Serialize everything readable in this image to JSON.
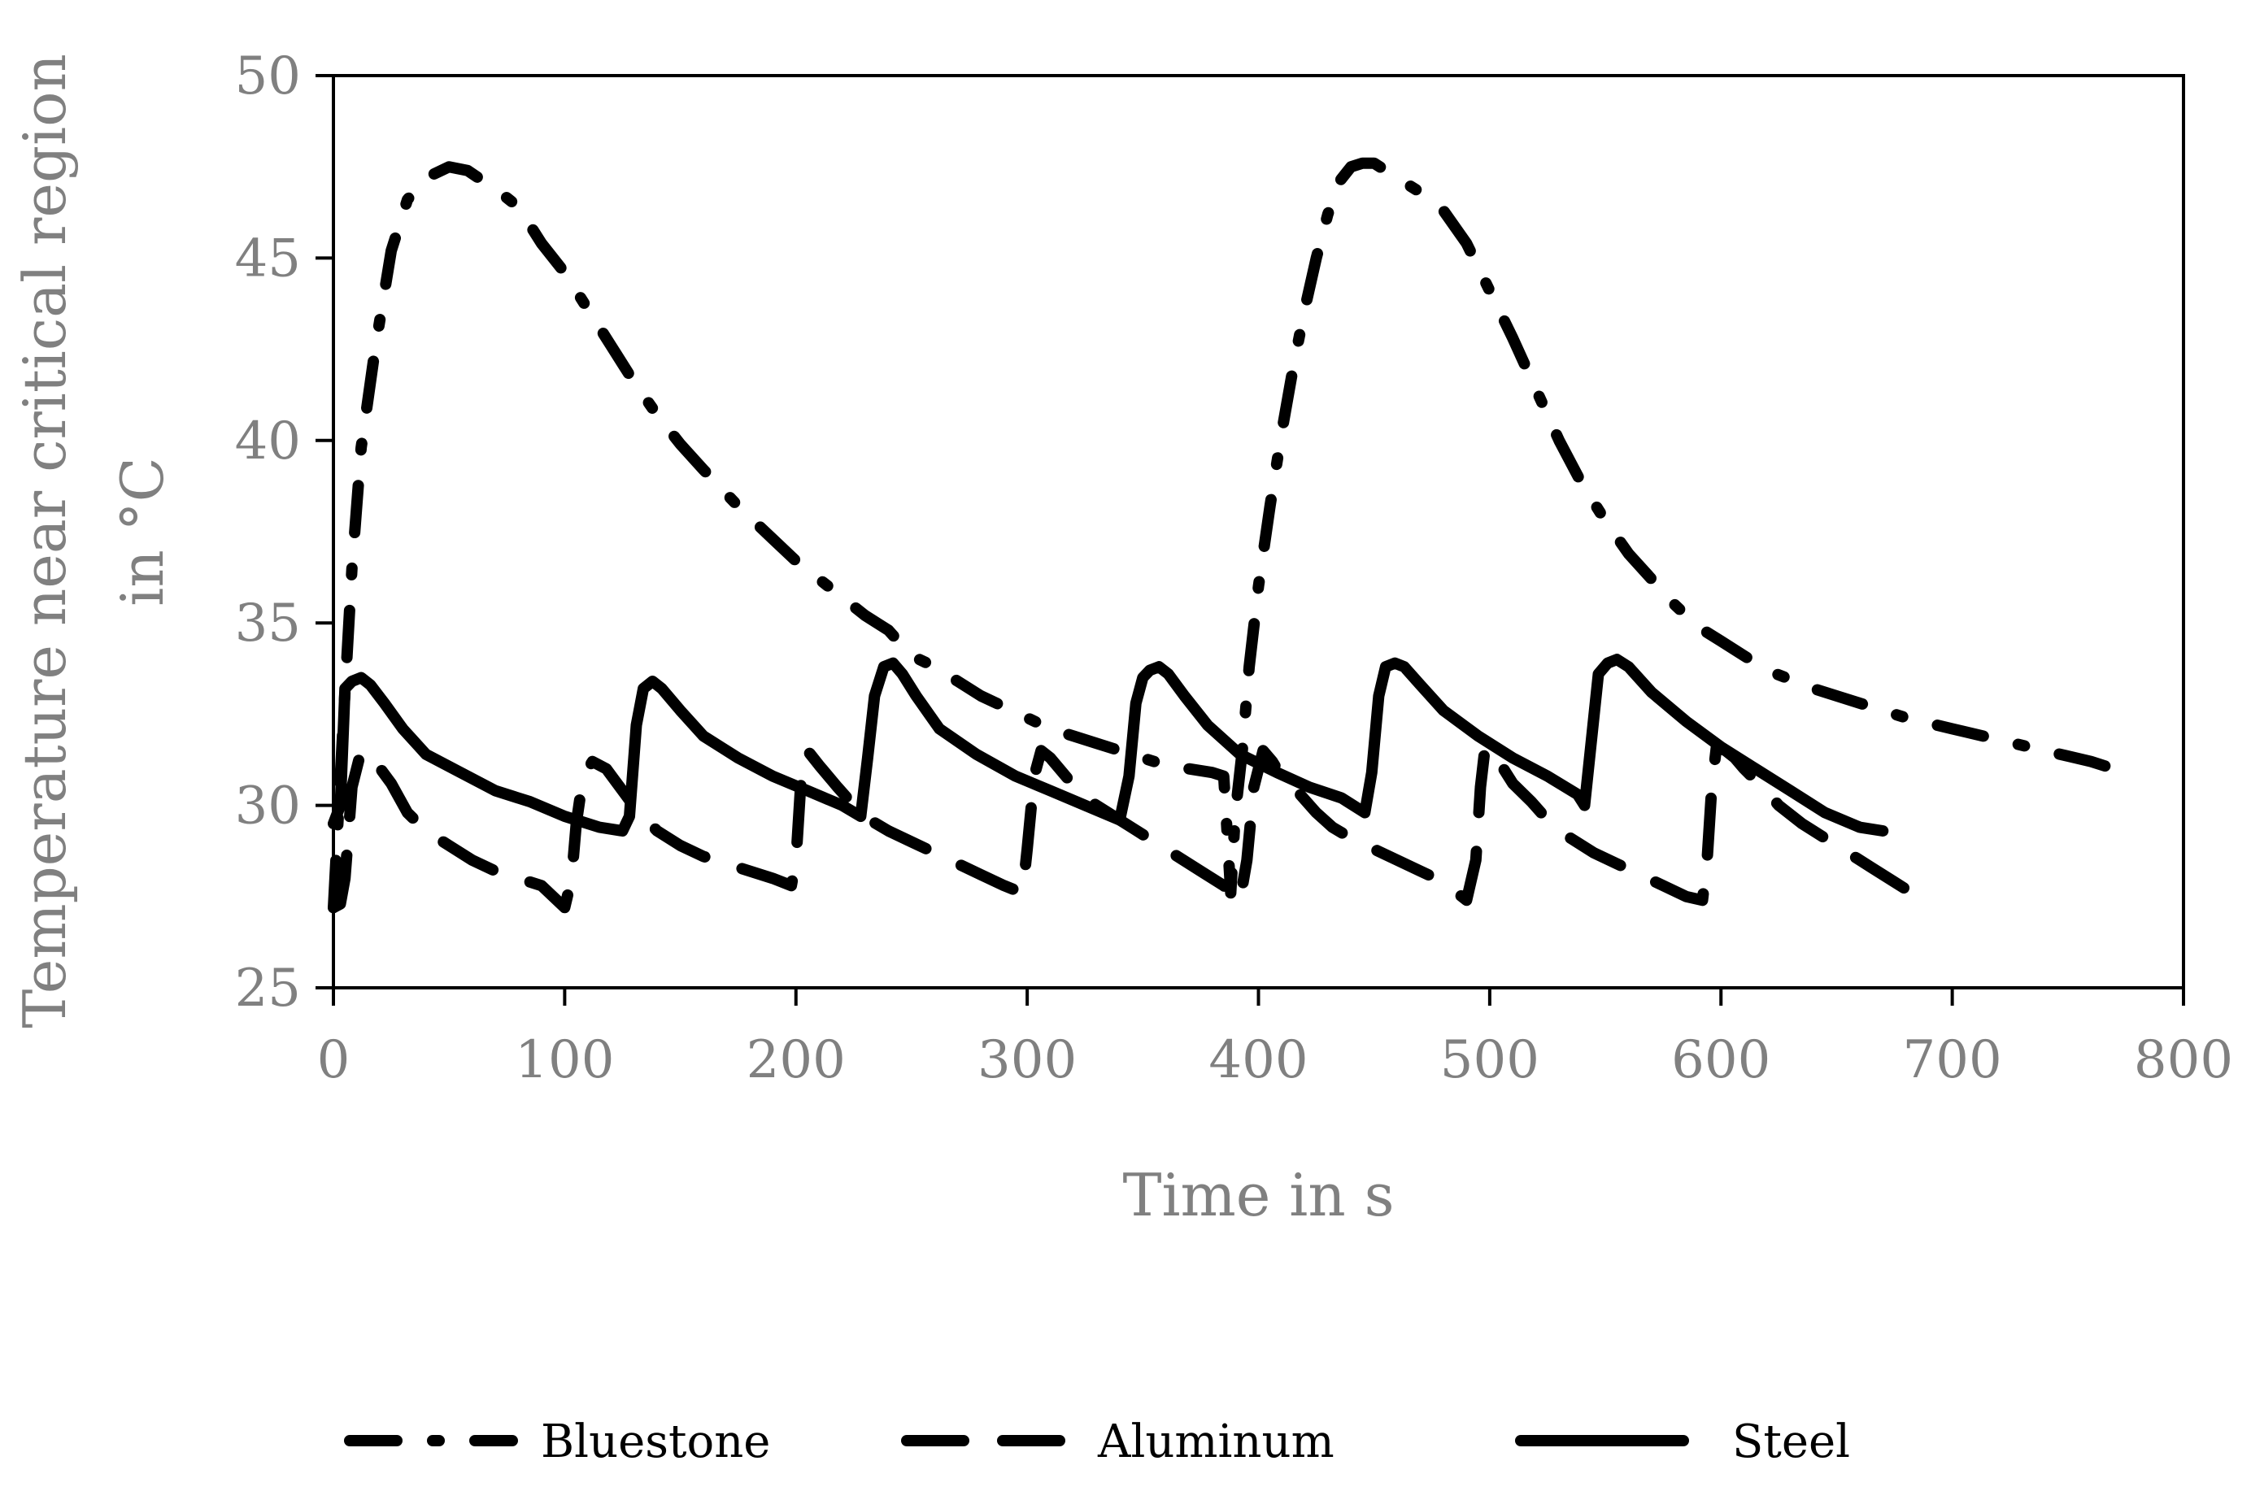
{
  "chart_data": {
    "type": "line",
    "title": "",
    "xlabel": "Time in s",
    "ylabel_lines": [
      "Temperature near critical region",
      "in °C"
    ],
    "xlim": [
      0,
      800
    ],
    "ylim": [
      25,
      50
    ],
    "xticks": [
      0,
      100,
      200,
      300,
      400,
      500,
      600,
      700,
      800
    ],
    "yticks": [
      25,
      30,
      35,
      40,
      45,
      50
    ],
    "grid": false,
    "legend_position": "bottom",
    "series": [
      {
        "name": "Bluestone",
        "style": "dash-dot",
        "x": [
          0,
          4,
          8,
          12,
          18,
          25,
          32,
          40,
          50,
          58,
          65,
          70,
          80,
          90,
          100,
          110,
          120,
          130,
          140,
          150,
          160,
          175,
          190,
          200,
          210,
          220,
          230,
          240,
          250,
          260,
          270,
          280,
          290,
          300,
          310,
          320,
          330,
          340,
          350,
          360,
          370,
          380,
          385,
          388,
          390,
          393,
          396,
          400,
          405,
          410,
          415,
          420,
          425,
          430,
          435,
          440,
          445,
          450,
          455,
          460,
          470,
          480,
          490,
          500,
          510,
          520,
          530,
          540,
          550,
          560,
          570,
          580,
          590,
          600,
          610,
          620,
          640,
          660,
          680,
          700,
          720,
          740,
          760,
          780
        ],
        "y": [
          27.2,
          32,
          36.5,
          39.8,
          42.5,
          45.2,
          46.6,
          47.2,
          47.5,
          47.4,
          47.1,
          46.9,
          46.4,
          45.4,
          44.6,
          43.6,
          42.6,
          41.6,
          40.7,
          39.9,
          39.2,
          38.2,
          37.3,
          36.7,
          36.2,
          35.7,
          35.2,
          34.8,
          34.1,
          33.8,
          33.4,
          33.0,
          32.7,
          32.4,
          32.1,
          31.9,
          31.7,
          31.5,
          31.3,
          31.1,
          31.0,
          30.9,
          30.8,
          27.6,
          29.8,
          31.5,
          33.8,
          36.0,
          38.2,
          40.2,
          42.0,
          43.6,
          45.0,
          46.2,
          47.1,
          47.5,
          47.6,
          47.6,
          47.4,
          47.2,
          46.8,
          46.3,
          45.4,
          44.1,
          42.8,
          41.4,
          40.0,
          38.8,
          37.8,
          36.9,
          36.2,
          35.5,
          34.9,
          34.5,
          34.1,
          33.7,
          33.2,
          32.8,
          32.4,
          32.1,
          31.8,
          31.5,
          31.2,
          30.8
        ]
      },
      {
        "name": "Aluminum",
        "style": "dashed",
        "x": [
          0,
          3,
          5,
          8,
          12,
          18,
          25,
          32,
          40,
          50,
          60,
          70,
          80,
          90,
          100,
          103,
          105,
          108,
          112,
          118,
          125,
          132,
          140,
          150,
          160,
          170,
          180,
          190,
          198,
          200,
          202,
          205,
          210,
          218,
          225,
          232,
          240,
          250,
          260,
          270,
          280,
          290,
          298,
          300,
          303,
          306,
          310,
          318,
          325,
          335,
          345,
          355,
          365,
          375,
          385,
          392,
          395,
          398,
          402,
          406,
          410,
          418,
          425,
          432,
          440,
          450,
          460,
          470,
          480,
          490,
          494,
          496,
          498,
          502,
          506,
          510,
          518,
          525,
          535,
          545,
          555,
          565,
          575,
          585,
          592,
          594,
          596,
          598,
          602,
          606,
          610,
          618,
          625,
          635,
          645,
          655,
          665,
          675,
          690
        ],
        "y": [
          27.2,
          27.3,
          28,
          30.5,
          31.5,
          31.2,
          30.6,
          29.8,
          29.3,
          28.9,
          28.5,
          28.2,
          28.0,
          27.8,
          27.2,
          28,
          29.5,
          30.8,
          31.2,
          31.0,
          30.4,
          29.8,
          29.3,
          28.9,
          28.6,
          28.4,
          28.2,
          28.0,
          27.8,
          28.5,
          30.5,
          31.5,
          31.1,
          30.5,
          30.0,
          29.6,
          29.3,
          29.0,
          28.7,
          28.4,
          28.1,
          27.8,
          27.6,
          28.8,
          30.8,
          31.5,
          31.3,
          30.7,
          30.2,
          29.8,
          29.4,
          29.0,
          28.6,
          28.2,
          27.8,
          27.4,
          28.5,
          30.5,
          31.5,
          31.2,
          30.8,
          30.3,
          29.8,
          29.4,
          29.1,
          28.8,
          28.5,
          28.2,
          27.9,
          27.4,
          28.5,
          30.5,
          31.6,
          31.4,
          31.0,
          30.6,
          30.1,
          29.6,
          29.1,
          28.7,
          28.4,
          28.1,
          27.8,
          27.5,
          27.4,
          28.5,
          30.5,
          31.6,
          31.5,
          31.3,
          31.0,
          30.5,
          30.0,
          29.5,
          29.1,
          28.7,
          28.3,
          27.9,
          27.3
        ]
      },
      {
        "name": "Steel",
        "style": "solid",
        "x": [
          0,
          3,
          5,
          8,
          12,
          16,
          22,
          30,
          40,
          55,
          70,
          85,
          100,
          115,
          125,
          128,
          131,
          134,
          138,
          142,
          150,
          160,
          175,
          190,
          205,
          220,
          228,
          231,
          234,
          238,
          242,
          246,
          252,
          262,
          278,
          295,
          310,
          325,
          340,
          344,
          347,
          350,
          353,
          357,
          361,
          368,
          378,
          392,
          408,
          422,
          436,
          446,
          449,
          452,
          455,
          459,
          463,
          470,
          480,
          495,
          510,
          525,
          538,
          541,
          544,
          547,
          551,
          555,
          560,
          570,
          585,
          600,
          615,
          630,
          645,
          660,
          670
        ],
        "y": [
          29.5,
          30,
          33.2,
          33.4,
          33.5,
          33.3,
          32.8,
          32.1,
          31.4,
          30.9,
          30.4,
          30.1,
          29.7,
          29.4,
          29.3,
          29.7,
          32.2,
          33.2,
          33.4,
          33.2,
          32.6,
          31.9,
          31.3,
          30.8,
          30.4,
          30.0,
          29.7,
          31.3,
          33.0,
          33.8,
          33.9,
          33.6,
          33.0,
          32.1,
          31.4,
          30.8,
          30.4,
          30.0,
          29.6,
          30.8,
          32.8,
          33.5,
          33.7,
          33.8,
          33.6,
          33.0,
          32.2,
          31.4,
          30.9,
          30.5,
          30.2,
          29.8,
          30.9,
          33.0,
          33.8,
          33.9,
          33.8,
          33.3,
          32.6,
          31.9,
          31.3,
          30.8,
          30.3,
          30.0,
          31.8,
          33.6,
          33.9,
          34.0,
          33.8,
          33.1,
          32.3,
          31.6,
          31.0,
          30.4,
          29.8,
          29.4,
          29.3
        ]
      }
    ]
  }
}
